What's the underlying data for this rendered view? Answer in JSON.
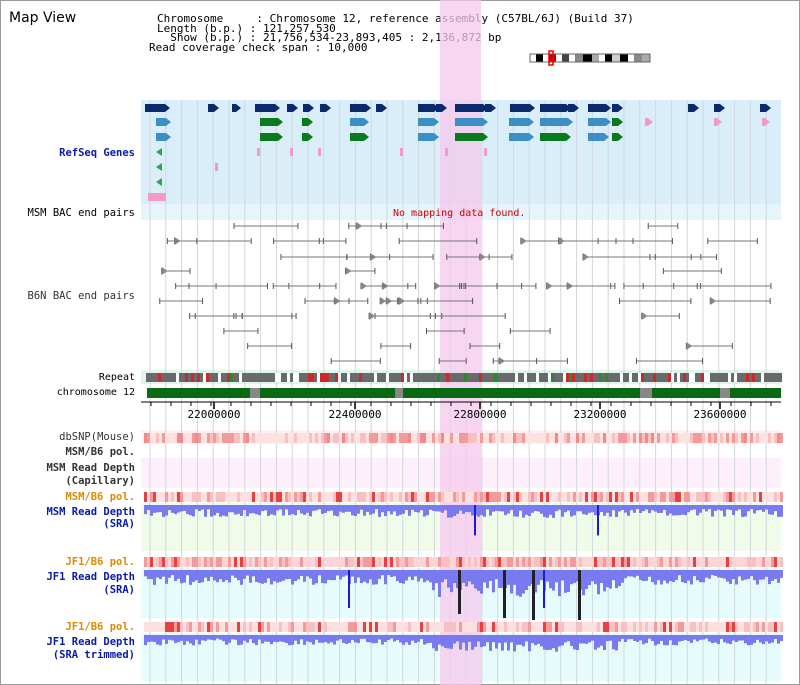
{
  "title": "Map View",
  "header": {
    "line1": "Chromosome     : Chromosome 12, reference assembly (C57BL/6J) (Build 37)",
    "line2": "Length (b.p.) : 121,257,530",
    "line3": "  Show (b.p.) : 21,756,534-23,893,405 : 2,136,872 bp",
    "line4": "Read coverage check span : 10,000"
  },
  "tracks": {
    "refseq": "RefSeq Genes",
    "msm_bac": "MSM BAC end pairs",
    "b6n_bac": "B6N BAC end pairs",
    "no_mapping": "No mapping data found.",
    "repeat": "Repeat",
    "chromosome": "chromosome 12",
    "dbsnp": "dbSNP(Mouse)",
    "msm_b6_pol_1": "MSM/B6 pol.",
    "msm_depth_cap_1": "MSM Read Depth",
    "msm_depth_cap_2": "(Capillary)",
    "msm_b6_pol_2": "MSM/B6 pol.",
    "msm_depth_sra_1": "MSM Read Depth",
    "msm_depth_sra_2": "(SRA)",
    "jf1_b6_pol_1": "JF1/B6 pol.",
    "jf1_depth_1": "JF1 Read Depth",
    "jf1_depth_2": "(SRA)",
    "jf1_b6_pol_2": "JF1/B6 pol.",
    "jf1_trim_1": "JF1 Read Depth",
    "jf1_trim_2": "(SRA trimmed)"
  },
  "axis": {
    "ticks": [
      "22000000",
      "22400000",
      "22800000",
      "23200000",
      "23600000"
    ]
  },
  "colors": {
    "gene_dark": "#0a2a6e",
    "gene_mid": "#3c8fc4",
    "gene_green": "#0a7a1e",
    "gene_pink": "#f59ac8",
    "refseq_bg": "#d9eef8",
    "highlight": "#f6c8ee",
    "depth_blue": "#7a7af0",
    "depth_dark": "#1a1ad8",
    "snp_red": "#e84040"
  }
}
